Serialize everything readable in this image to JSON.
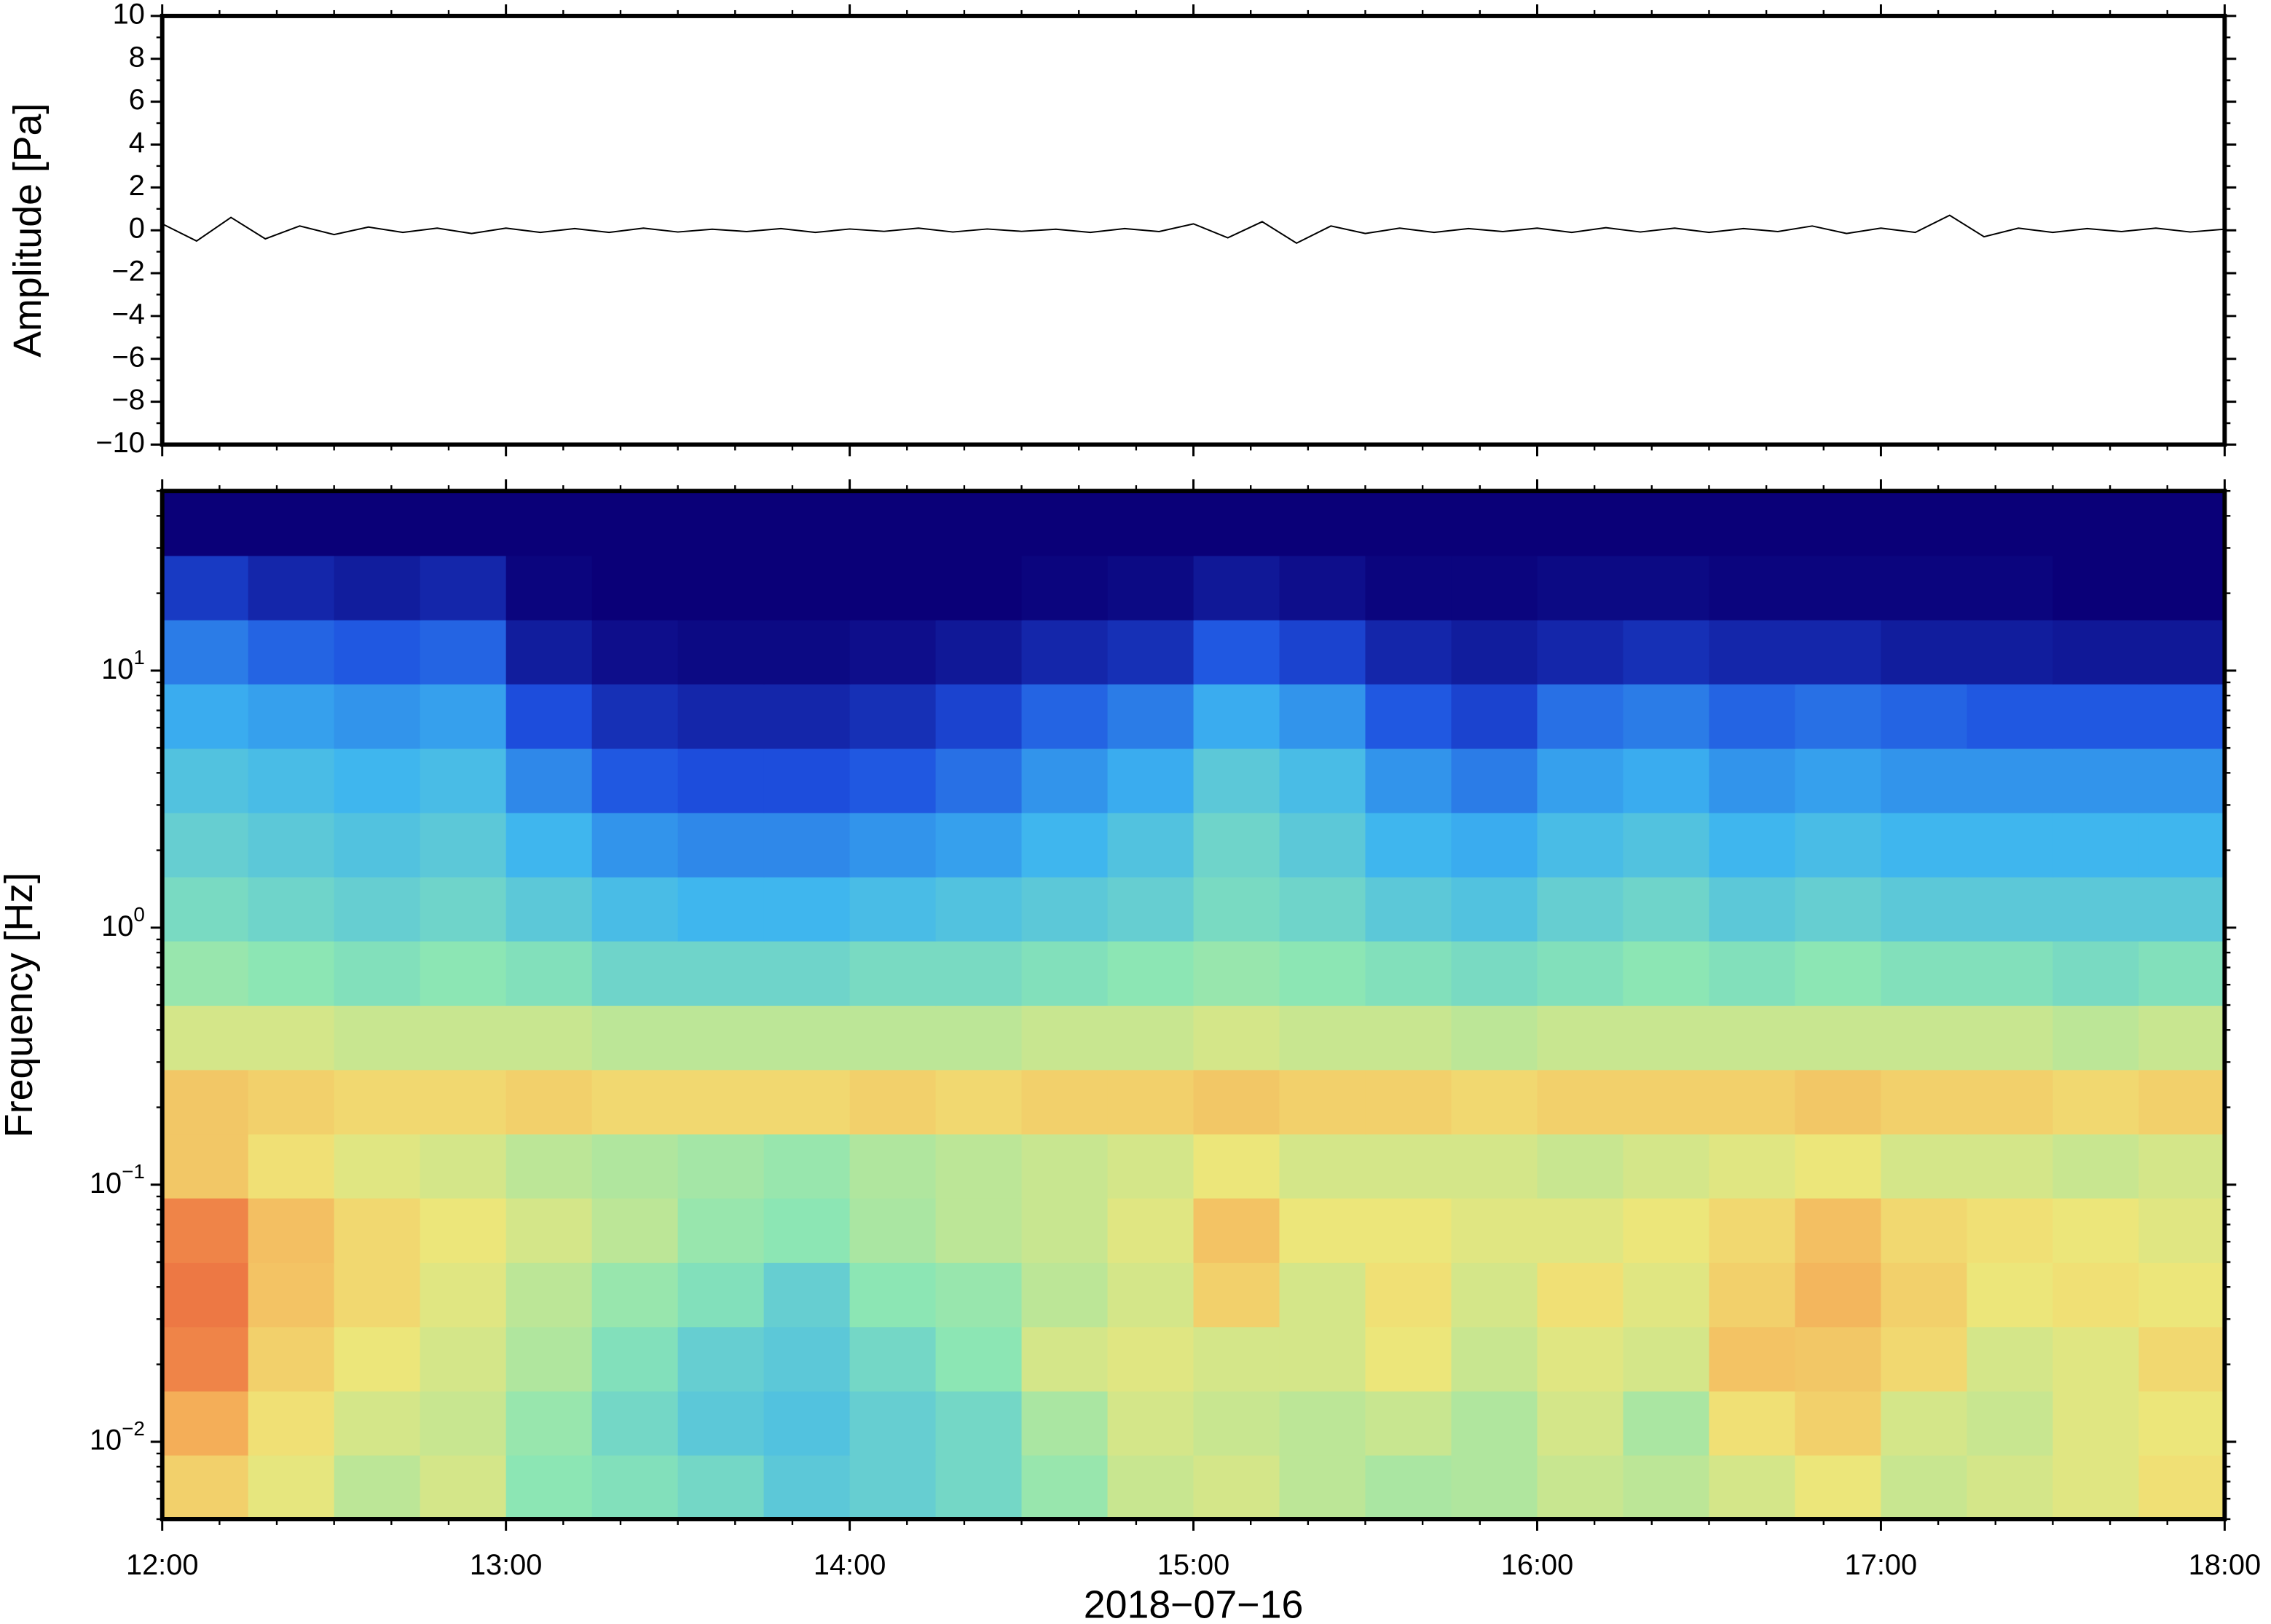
{
  "chart_data": [
    {
      "type": "line",
      "ylabel": "Amplitude [Pa]",
      "color": "#000000",
      "x": [
        12,
        12.1,
        12.2,
        12.3,
        12.4,
        12.5,
        12.6,
        12.7,
        12.8,
        12.9,
        13,
        13.1,
        13.2,
        13.3,
        13.4,
        13.5,
        13.6,
        13.7,
        13.8,
        13.9,
        14,
        14.1,
        14.2,
        14.3,
        14.4,
        14.5,
        14.6,
        14.7,
        14.8,
        14.9,
        15,
        15.1,
        15.2,
        15.3,
        15.4,
        15.5,
        15.6,
        15.7,
        15.8,
        15.9,
        16,
        16.1,
        16.2,
        16.3,
        16.4,
        16.5,
        16.6,
        16.7,
        16.8,
        16.9,
        17,
        17.1,
        17.2,
        17.3,
        17.4,
        17.5,
        17.6,
        17.7,
        17.8,
        17.9,
        18
      ],
      "values": [
        0.3,
        -0.5,
        0.6,
        -0.4,
        0.2,
        -0.2,
        0.15,
        -0.1,
        0.1,
        -0.15,
        0.1,
        -0.1,
        0.08,
        -0.1,
        0.1,
        -0.08,
        0.05,
        -0.06,
        0.08,
        -0.1,
        0.06,
        -0.05,
        0.1,
        -0.08,
        0.06,
        -0.05,
        0.05,
        -0.1,
        0.08,
        -0.06,
        0.3,
        -0.35,
        0.4,
        -0.6,
        0.2,
        -0.15,
        0.1,
        -0.1,
        0.08,
        -0.06,
        0.1,
        -0.1,
        0.12,
        -0.08,
        0.1,
        -0.1,
        0.08,
        -0.06,
        0.2,
        -0.15,
        0.1,
        -0.1,
        0.7,
        -0.3,
        0.1,
        -0.1,
        0.08,
        -0.06,
        0.1,
        -0.08,
        0.05
      ],
      "xlim": [
        12,
        18
      ],
      "xticks": [
        12,
        13,
        14,
        15,
        16,
        17,
        18
      ],
      "xtick_labels": false,
      "ylim": [
        -10,
        10
      ],
      "yticks": [
        10,
        8,
        6,
        4,
        2,
        0,
        {
          "value": -2,
          "label": "−2"
        },
        {
          "value": -4,
          "label": "−4"
        },
        {
          "value": -6,
          "label": "−6"
        },
        {
          "value": -8,
          "label": "−8"
        },
        {
          "value": -10,
          "label": "−10"
        }
      ]
    },
    {
      "type": "heatmap",
      "ylabel": "Frequency [Hz]",
      "xlabel": "2018−07−16",
      "xlim": [
        12,
        18
      ],
      "xticks": [
        {
          "value": 12,
          "label": "12:00"
        },
        {
          "value": 13,
          "label": "13:00"
        },
        {
          "value": 14,
          "label": "14:00"
        },
        {
          "value": 15,
          "label": "15:00"
        },
        {
          "value": 16,
          "label": "16:00"
        },
        {
          "value": 17,
          "label": "17:00"
        },
        {
          "value": 18,
          "label": "18:00"
        }
      ],
      "xtick_labels": true,
      "ylog": true,
      "ylim": [
        0.005,
        50
      ],
      "yticks": [
        {
          "value": 0.01,
          "label": "10",
          "exponent": "−2"
        },
        {
          "value": 0.1,
          "label": "10",
          "exponent": "−1"
        },
        {
          "value": 1,
          "label": "10",
          "exponent": "0"
        },
        {
          "value": 10,
          "label": "10",
          "exponent": "1"
        }
      ],
      "x_bins": [
        12,
        12.25,
        12.5,
        12.75,
        13,
        13.25,
        13.5,
        13.75,
        14,
        14.25,
        14.5,
        14.75,
        15,
        15.25,
        15.5,
        15.75,
        16,
        16.25,
        16.5,
        16.75,
        17,
        17.25,
        17.5,
        17.75,
        18
      ],
      "y_bins": [
        0.005,
        0.0089,
        0.0158,
        0.0281,
        0.05,
        0.089,
        0.158,
        0.281,
        0.5,
        0.89,
        1.58,
        2.81,
        5,
        8.9,
        15.8,
        28.1,
        50
      ],
      "zlim": [
        0,
        100
      ],
      "colormap": [
        "#0a0078",
        "#1e50e0",
        "#3cb4f0",
        "#8ce6b4",
        "#f0e678",
        "#f5a050",
        "#e03c32"
      ],
      "z": [
        [
          72,
          65,
          58,
          62,
          50,
          48,
          45,
          40,
          42,
          45,
          52,
          60,
          62,
          58,
          55,
          56,
          60,
          58,
          62,
          66,
          60,
          62,
          64,
          68
        ],
        [
          80,
          68,
          62,
          60,
          52,
          45,
          40,
          38,
          42,
          45,
          55,
          62,
          60,
          58,
          60,
          56,
          62,
          55,
          68,
          72,
          62,
          60,
          64,
          66
        ],
        [
          88,
          72,
          66,
          62,
          56,
          48,
          42,
          40,
          45,
          50,
          62,
          64,
          62,
          62,
          66,
          60,
          64,
          62,
          75,
          74,
          70,
          62,
          64,
          70
        ],
        [
          90,
          75,
          70,
          64,
          58,
          52,
          48,
          42,
          50,
          52,
          58,
          62,
          72,
          62,
          68,
          62,
          68,
          64,
          72,
          78,
          72,
          66,
          68,
          66
        ],
        [
          88,
          76,
          70,
          66,
          62,
          58,
          52,
          50,
          55,
          58,
          60,
          64,
          75,
          66,
          66,
          64,
          64,
          66,
          70,
          76,
          70,
          68,
          66,
          64
        ],
        [
          74,
          68,
          64,
          62,
          58,
          56,
          54,
          52,
          56,
          58,
          60,
          62,
          66,
          62,
          62,
          62,
          60,
          62,
          64,
          66,
          62,
          62,
          60,
          62
        ],
        [
          74,
          72,
          70,
          70,
          72,
          70,
          70,
          70,
          72,
          70,
          72,
          72,
          74,
          72,
          72,
          70,
          72,
          72,
          72,
          74,
          72,
          72,
          70,
          72
        ],
        [
          62,
          62,
          60,
          60,
          60,
          58,
          58,
          58,
          58,
          58,
          60,
          60,
          62,
          60,
          60,
          58,
          60,
          60,
          60,
          60,
          60,
          60,
          58,
          60
        ],
        [
          52,
          50,
          48,
          50,
          48,
          44,
          44,
          44,
          46,
          46,
          48,
          50,
          52,
          50,
          48,
          46,
          48,
          50,
          48,
          50,
          48,
          48,
          46,
          48
        ],
        [
          46,
          44,
          42,
          44,
          40,
          36,
          34,
          34,
          36,
          38,
          40,
          42,
          46,
          44,
          40,
          38,
          42,
          44,
          40,
          42,
          40,
          40,
          40,
          40
        ],
        [
          42,
          40,
          38,
          40,
          34,
          28,
          26,
          26,
          28,
          30,
          34,
          38,
          44,
          40,
          34,
          32,
          36,
          38,
          34,
          36,
          34,
          34,
          34,
          34
        ],
        [
          38,
          36,
          34,
          36,
          26,
          18,
          16,
          16,
          18,
          22,
          28,
          32,
          40,
          36,
          28,
          24,
          30,
          32,
          28,
          30,
          28,
          28,
          28,
          28
        ],
        [
          32,
          30,
          28,
          30,
          16,
          10,
          8,
          8,
          10,
          14,
          20,
          24,
          32,
          28,
          18,
          14,
          22,
          24,
          20,
          22,
          20,
          18,
          18,
          18
        ],
        [
          24,
          20,
          18,
          20,
          6,
          3,
          2,
          2,
          3,
          5,
          8,
          10,
          18,
          14,
          8,
          6,
          8,
          10,
          8,
          8,
          6,
          6,
          5,
          5
        ],
        [
          12,
          8,
          6,
          8,
          1,
          0,
          0,
          0,
          0,
          0,
          1,
          2,
          5,
          3,
          1,
          1,
          2,
          2,
          1,
          1,
          1,
          1,
          0,
          0
        ],
        [
          0,
          0,
          0,
          0,
          0,
          0,
          0,
          0,
          0,
          0,
          0,
          0,
          0,
          0,
          0,
          0,
          0,
          0,
          0,
          0,
          0,
          0,
          0,
          0
        ]
      ]
    }
  ]
}
